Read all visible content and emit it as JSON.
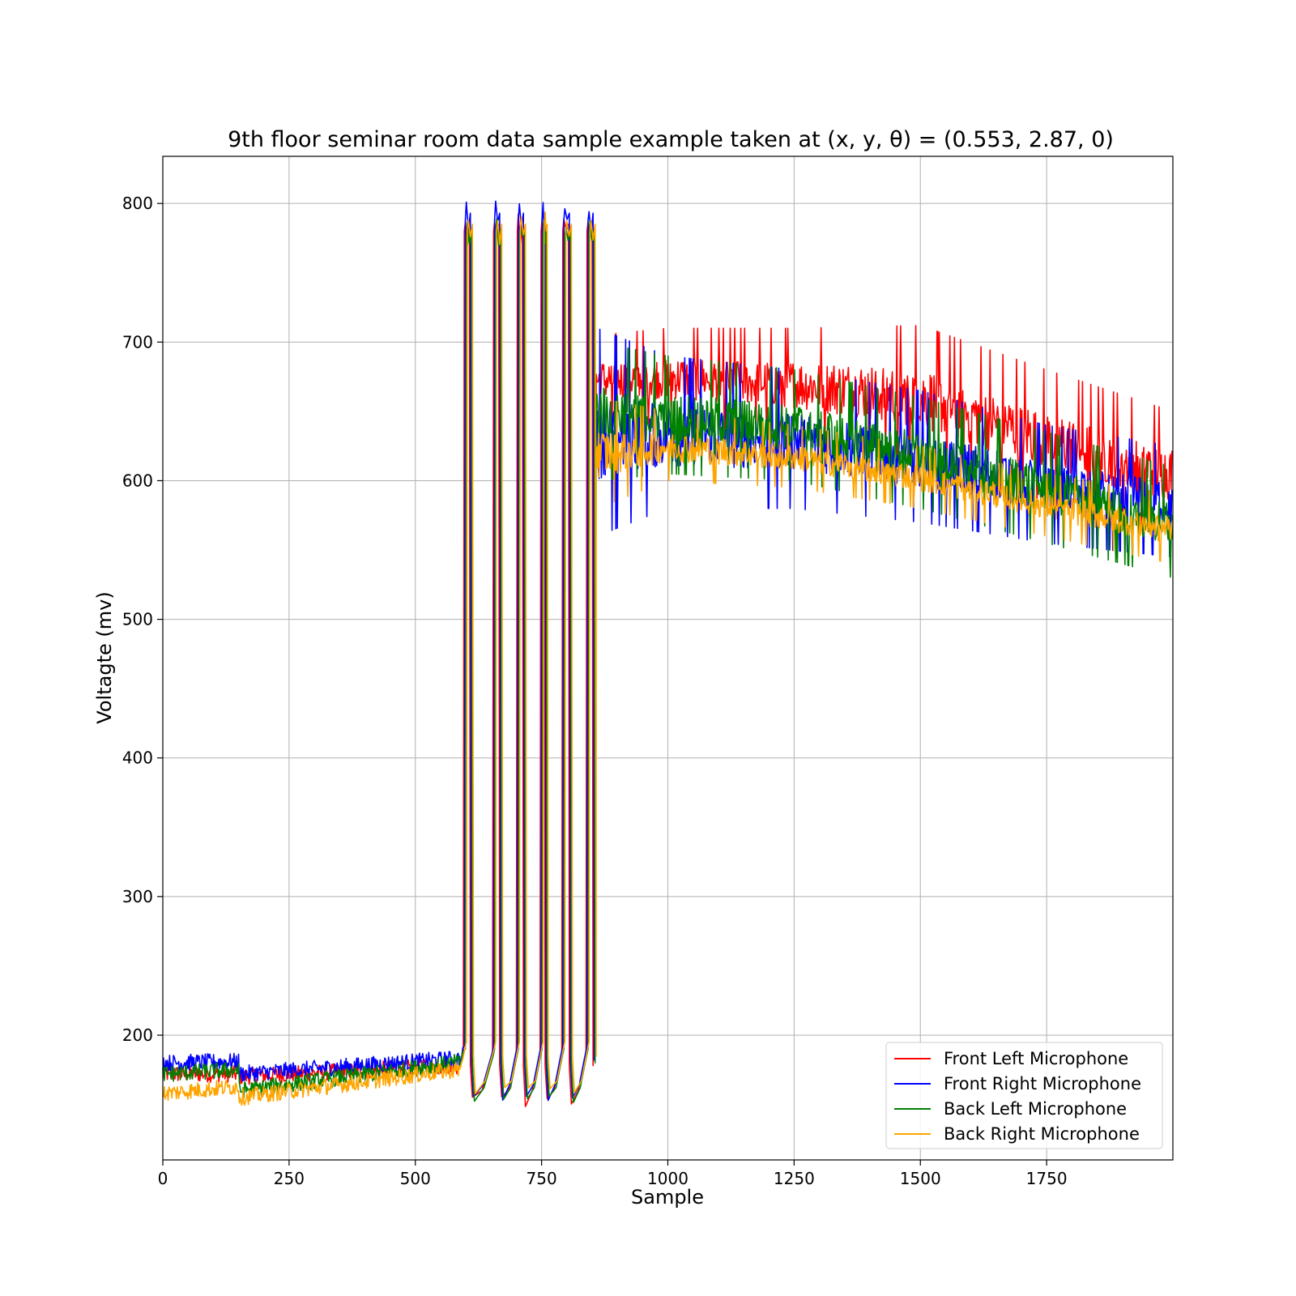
{
  "chart_data": {
    "type": "line",
    "title": "9th floor seminar room data sample example taken at (x, y, θ) = (0.553, 2.87, 0)",
    "xlabel": "Sample",
    "ylabel": "Voltagte (mv)",
    "xlim": [
      0,
      2000
    ],
    "ylim": [
      110,
      834
    ],
    "xticks": [
      0,
      250,
      500,
      750,
      1000,
      1250,
      1500,
      1750
    ],
    "yticks": [
      200,
      300,
      400,
      500,
      600,
      700,
      800
    ],
    "grid": true,
    "legend_position": "bottom-right",
    "pulses": [
      {
        "rise": 600,
        "fall": 612
      },
      {
        "rise": 658,
        "fall": 670
      },
      {
        "rise": 705,
        "fall": 717
      },
      {
        "rise": 752,
        "fall": 760
      },
      {
        "rise": 795,
        "fall": 808
      },
      {
        "rise": 843,
        "fall": 855
      }
    ],
    "series": [
      {
        "name": "Front Left Microphone",
        "color": "#ff0000",
        "baseline": [
          [
            0,
            172
          ],
          [
            150,
            172
          ],
          [
            150,
            170
          ],
          [
            580,
            178
          ]
        ],
        "pulse_min": 148,
        "pulse_max": 790,
        "envelope": [
          {
            "x": 860,
            "low": 640,
            "high": 705
          },
          {
            "x": 1000,
            "low": 640,
            "high": 710
          },
          {
            "x": 1250,
            "low": 630,
            "high": 710
          },
          {
            "x": 1500,
            "low": 610,
            "high": 712
          },
          {
            "x": 1750,
            "low": 580,
            "high": 680
          },
          {
            "x": 2000,
            "low": 560,
            "high": 650
          }
        ]
      },
      {
        "name": "Front Right Microphone",
        "color": "#0000ff",
        "baseline": [
          [
            0,
            180
          ],
          [
            150,
            181
          ],
          [
            150,
            172
          ],
          [
            580,
            183
          ]
        ],
        "pulse_min": 152,
        "pulse_max": 798,
        "envelope": [
          {
            "x": 860,
            "low": 560,
            "high": 710
          },
          {
            "x": 1000,
            "low": 580,
            "high": 690
          },
          {
            "x": 1250,
            "low": 580,
            "high": 680
          },
          {
            "x": 1500,
            "low": 570,
            "high": 665
          },
          {
            "x": 1750,
            "low": 555,
            "high": 640
          },
          {
            "x": 2000,
            "low": 545,
            "high": 625
          }
        ]
      },
      {
        "name": "Back Left Microphone",
        "color": "#008000",
        "baseline": [
          [
            0,
            172
          ],
          [
            150,
            175
          ],
          [
            150,
            160
          ],
          [
            580,
            180
          ]
        ],
        "pulse_min": 150,
        "pulse_max": 786,
        "envelope": [
          {
            "x": 860,
            "low": 600,
            "high": 700
          },
          {
            "x": 1000,
            "low": 605,
            "high": 690
          },
          {
            "x": 1250,
            "low": 600,
            "high": 680
          },
          {
            "x": 1500,
            "low": 580,
            "high": 660
          },
          {
            "x": 1750,
            "low": 555,
            "high": 635
          },
          {
            "x": 2000,
            "low": 530,
            "high": 610
          }
        ]
      },
      {
        "name": "Back Right Microphone",
        "color": "#ffa500",
        "baseline": [
          [
            0,
            158
          ],
          [
            150,
            163
          ],
          [
            150,
            155
          ],
          [
            580,
            175
          ]
        ],
        "pulse_min": 155,
        "pulse_max": 790,
        "envelope": [
          {
            "x": 860,
            "low": 580,
            "high": 660
          },
          {
            "x": 1000,
            "low": 600,
            "high": 650
          },
          {
            "x": 1250,
            "low": 595,
            "high": 640
          },
          {
            "x": 1500,
            "low": 580,
            "high": 625
          },
          {
            "x": 1750,
            "low": 560,
            "high": 605
          },
          {
            "x": 2000,
            "low": 540,
            "high": 590
          }
        ]
      }
    ]
  }
}
